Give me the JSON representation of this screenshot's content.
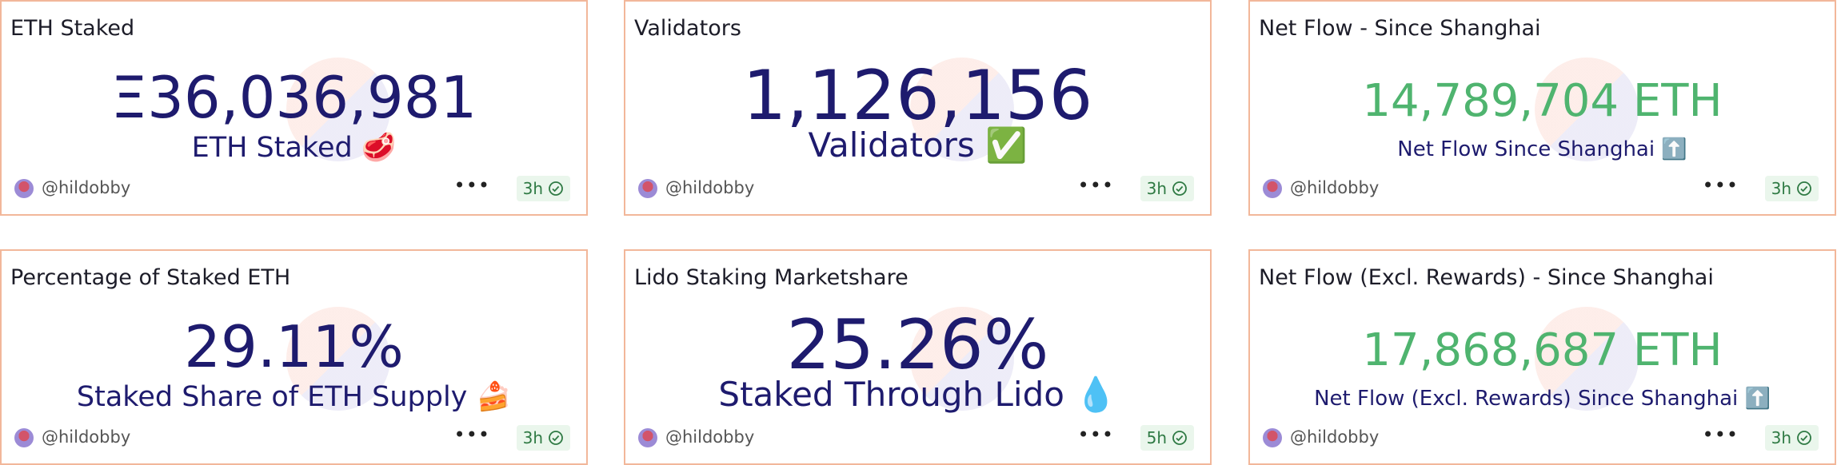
{
  "cards": [
    {
      "title": "ETH Staked",
      "value": "Ξ36,036,981",
      "subtitle": "ETH Staked 🥩",
      "author": "@hildobby",
      "age": "3h"
    },
    {
      "title": "Validators",
      "value": "1,126,156",
      "subtitle": "Validators ✅",
      "author": "@hildobby",
      "age": "3h"
    },
    {
      "title": "Net Flow - Since Shanghai",
      "value": "14,789,704 ETH",
      "subtitle": "Net Flow Since Shanghai ⬆️",
      "author": "@hildobby",
      "age": "3h"
    },
    {
      "title": "Percentage of Staked ETH",
      "value": "29.11%",
      "subtitle": "Staked Share of ETH Supply 🍰",
      "author": "@hildobby",
      "age": "3h"
    },
    {
      "title": "Lido Staking Marketshare",
      "value": "25.26%",
      "subtitle": "Staked Through Lido 💧",
      "author": "@hildobby",
      "age": "5h"
    },
    {
      "title": "Net Flow (Excl. Rewards) - Since Shanghai",
      "value": "17,868,687 ETH",
      "subtitle": "Net Flow (Excl. Rewards) Since Shanghai ⬆️",
      "author": "@hildobby",
      "age": "3h"
    }
  ]
}
